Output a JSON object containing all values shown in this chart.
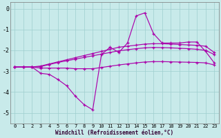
{
  "title": "Windchill (Refroidissement éolien,°C)",
  "bg_color": "#c8eaea",
  "line_color": "#aa00aa",
  "grid_color": "#9ecece",
  "xlim": [
    -0.5,
    23.5
  ],
  "ylim": [
    -5.5,
    0.3
  ],
  "xticks": [
    0,
    1,
    2,
    3,
    4,
    5,
    6,
    7,
    8,
    9,
    10,
    11,
    12,
    13,
    14,
    15,
    16,
    17,
    18,
    19,
    20,
    21,
    22,
    23
  ],
  "yticks": [
    0,
    -1,
    -2,
    -3,
    -4,
    -5
  ],
  "hours": [
    0,
    1,
    2,
    3,
    4,
    5,
    6,
    7,
    8,
    9,
    10,
    11,
    12,
    13,
    14,
    15,
    16,
    17,
    18,
    19,
    20,
    21,
    22,
    23
  ],
  "line1": [
    -2.8,
    -2.8,
    -2.8,
    -3.1,
    -3.15,
    -3.4,
    -3.7,
    -4.2,
    -4.6,
    -4.85,
    -2.2,
    -1.85,
    -2.1,
    -1.65,
    -0.35,
    -0.2,
    -1.2,
    -1.65,
    -1.65,
    -1.65,
    -1.6,
    -1.6,
    -2.05,
    -2.6
  ],
  "line2": [
    -2.8,
    -2.8,
    -2.8,
    -2.75,
    -2.65,
    -2.55,
    -2.45,
    -2.35,
    -2.25,
    -2.15,
    -2.05,
    -1.95,
    -1.85,
    -1.8,
    -1.75,
    -1.7,
    -1.68,
    -1.68,
    -1.7,
    -1.72,
    -1.74,
    -1.76,
    -1.8,
    -2.1
  ],
  "line3": [
    -2.8,
    -2.8,
    -2.8,
    -2.78,
    -2.68,
    -2.58,
    -2.5,
    -2.42,
    -2.34,
    -2.26,
    -2.18,
    -2.1,
    -2.02,
    -1.97,
    -1.92,
    -1.88,
    -1.86,
    -1.87,
    -1.88,
    -1.9,
    -1.92,
    -1.95,
    -2.0,
    -2.2
  ],
  "line4": [
    -2.8,
    -2.8,
    -2.8,
    -2.85,
    -2.85,
    -2.85,
    -2.85,
    -2.88,
    -2.88,
    -2.88,
    -2.82,
    -2.76,
    -2.7,
    -2.65,
    -2.6,
    -2.56,
    -2.54,
    -2.54,
    -2.55,
    -2.56,
    -2.57,
    -2.58,
    -2.6,
    -2.7
  ]
}
